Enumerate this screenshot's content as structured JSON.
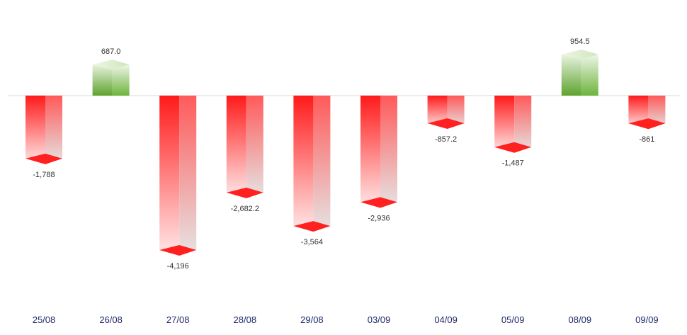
{
  "chart_data": {
    "type": "bar",
    "title": "",
    "xlabel": "",
    "ylabel": "",
    "categories": [
      "25/08",
      "26/08",
      "27/08",
      "28/08",
      "29/08",
      "03/09",
      "04/09",
      "05/09",
      "08/09",
      "09/09"
    ],
    "values": [
      -1788,
      687.0,
      -4196,
      -2682.2,
      -3564,
      -2936,
      -857.2,
      -1487,
      954.5,
      -861
    ],
    "labels": [
      "-1,788",
      "687.0",
      "-4,196",
      "-2,682.2",
      "-3,564",
      "-2,936",
      "-857.2",
      "-1,487",
      "954.5",
      "-861"
    ],
    "ylim": [
      -4500,
      1500
    ],
    "grid": false,
    "legend": "none",
    "colors": {
      "positive": "#6aaa3a",
      "positive_light": "#e6f2dc",
      "negative": "#ff1a1a",
      "negative_light": "#f2e4e4",
      "zero_line": "#d9d9d9",
      "tick_text": "#1f2a6b",
      "label_text": "#333333"
    }
  }
}
